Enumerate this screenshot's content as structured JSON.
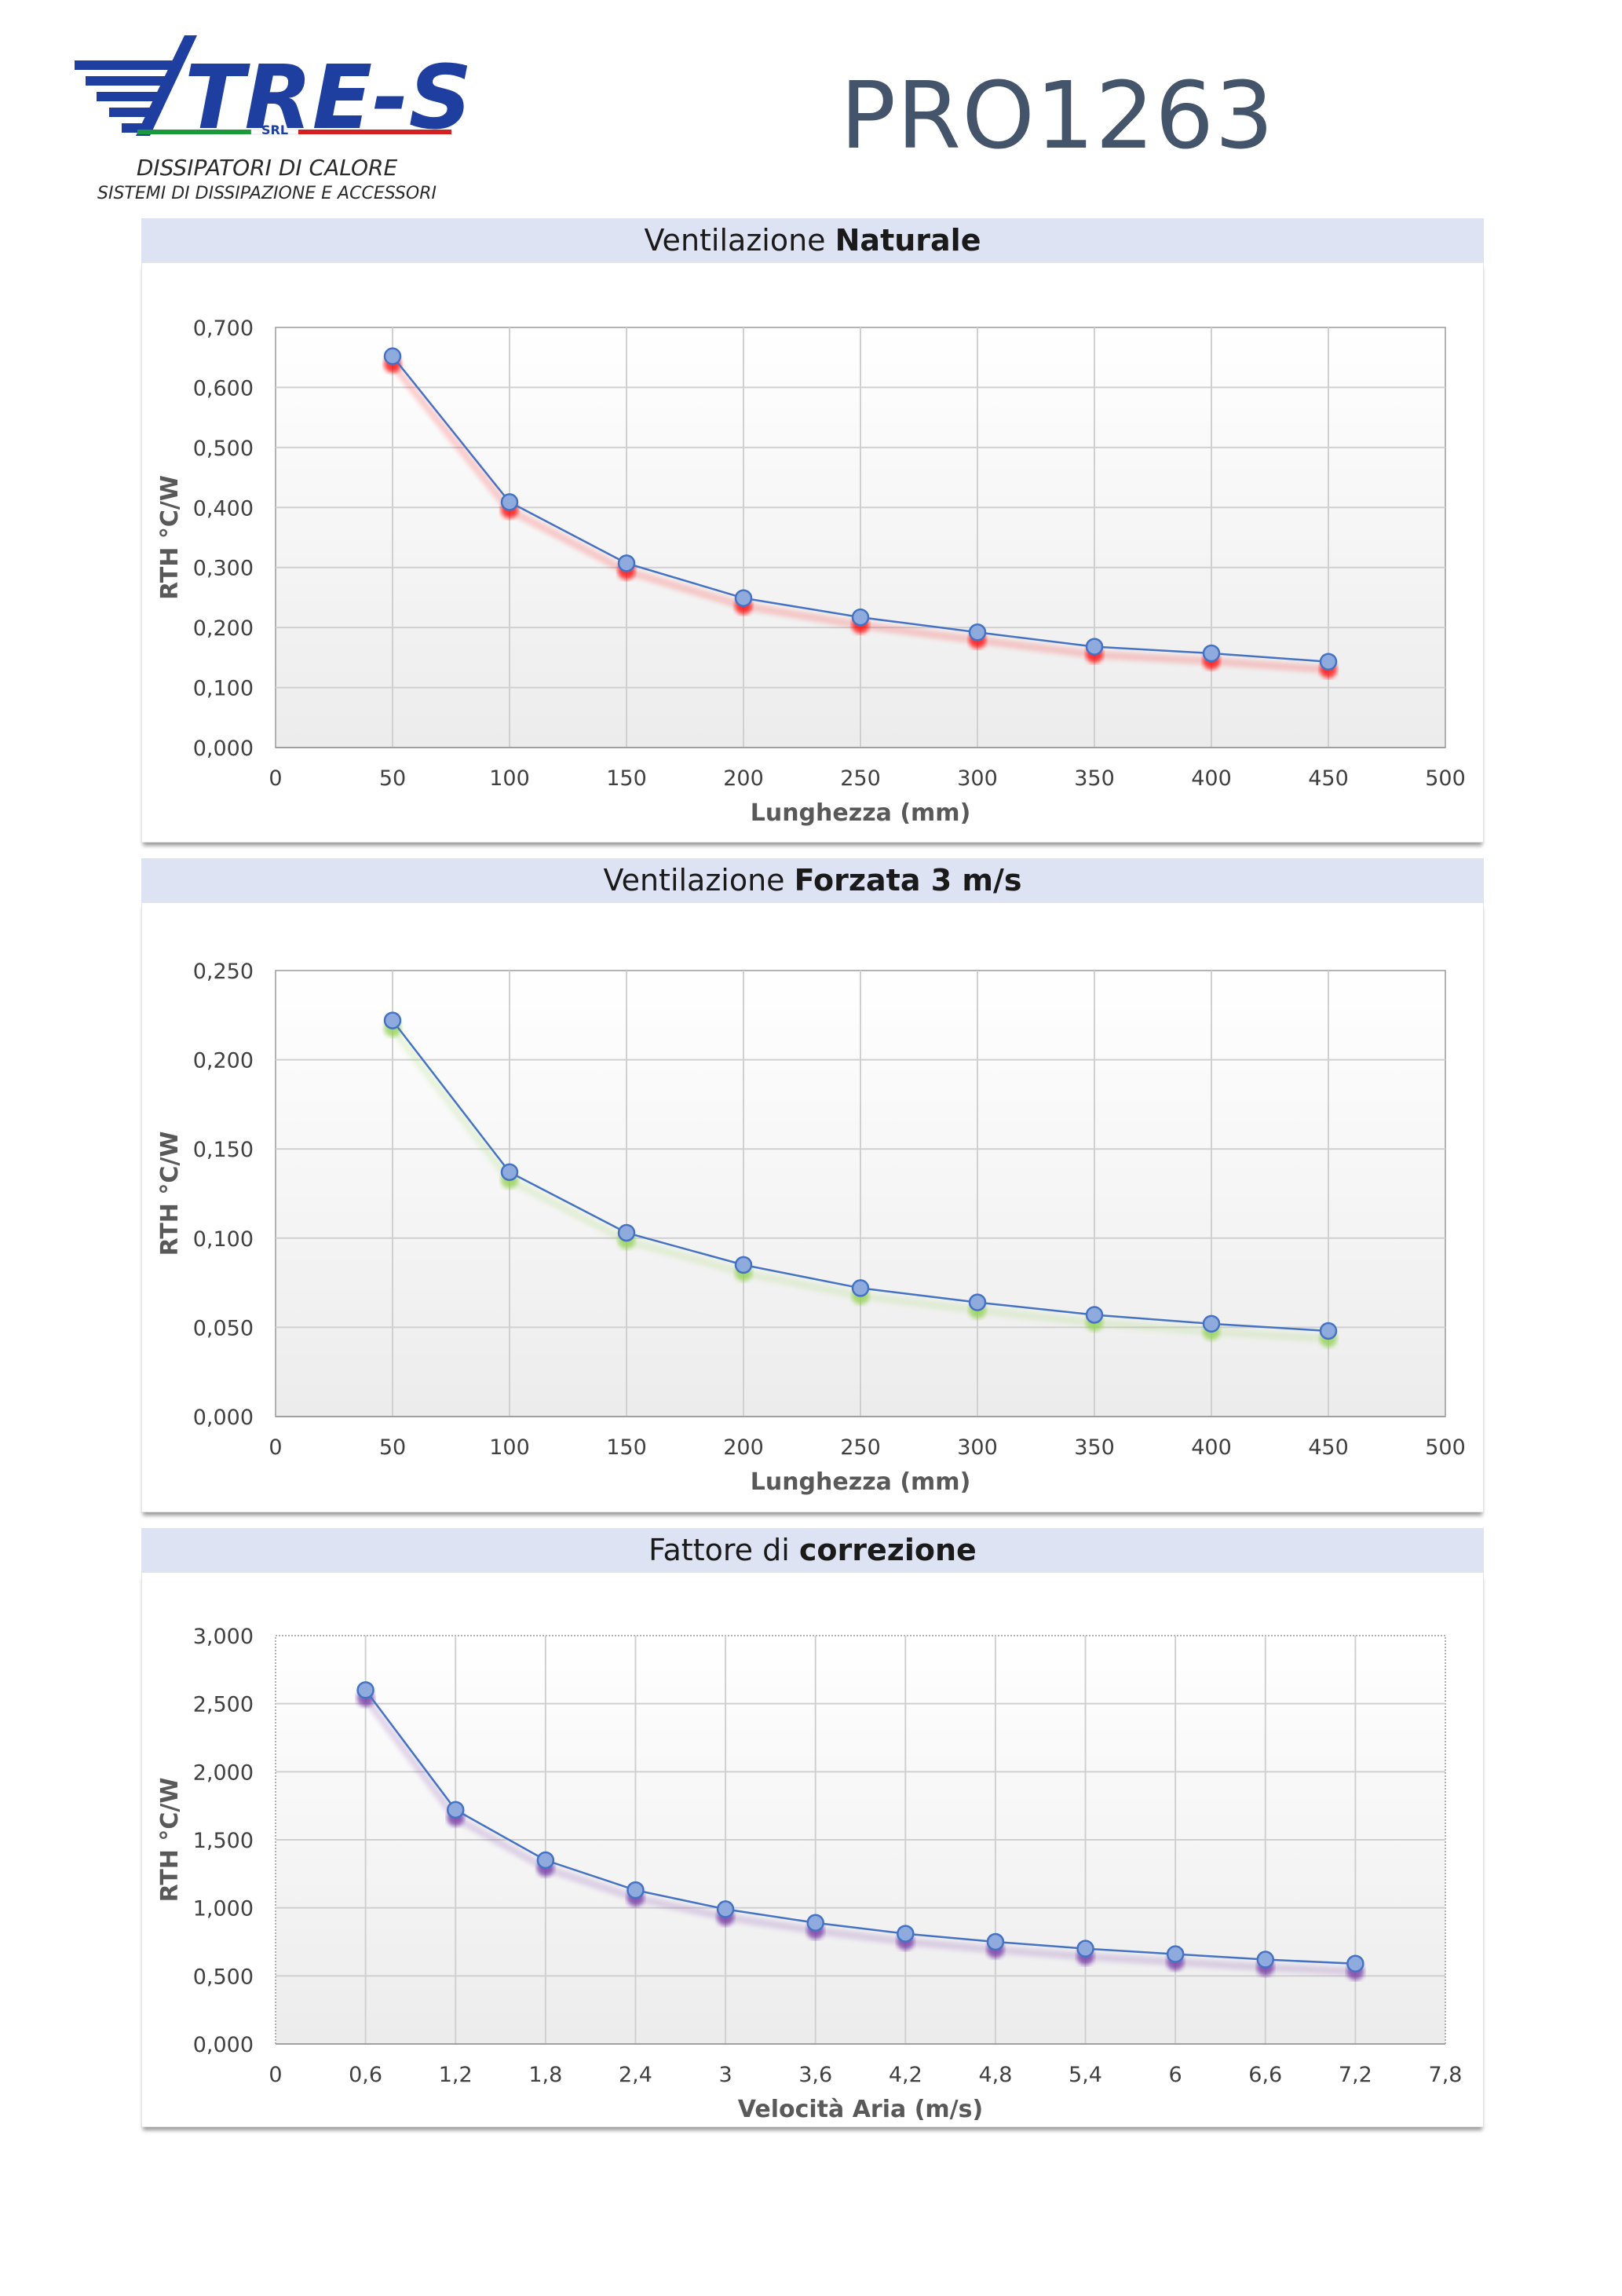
{
  "logo": {
    "brand": "TRE-S",
    "suffix": "SRL",
    "line1": "DISSIPATORI DI CALORE",
    "line2": "SISTEMI DI DISSIPAZIONE E ACCESSORI"
  },
  "doc_code": "PRO1263",
  "colors": {
    "header_bg": "#dde3f3",
    "line": "#4472c4",
    "marker_fill": "#8faadc",
    "shadow_natural": "#ff0000",
    "shadow_forced": "#92d050",
    "shadow_correction": "#7030a0"
  },
  "panels": [
    {
      "title_plain": "Ventilazione ",
      "title_bold": "Naturale"
    },
    {
      "title_plain": "Ventilazione ",
      "title_bold": "Forzata 3 m/s"
    },
    {
      "title_plain": "Fattore di ",
      "title_bold": "correzione"
    }
  ],
  "chart_data": [
    {
      "type": "scatter",
      "xlabel": "Lunghezza (mm)",
      "ylabel": "RTH °C/W",
      "xlim": [
        0,
        500
      ],
      "ylim": [
        0,
        0.7
      ],
      "xticks": [
        "0",
        "50",
        "100",
        "150",
        "200",
        "250",
        "300",
        "350",
        "400",
        "450",
        "500"
      ],
      "yticks": [
        "0,000",
        "0,100",
        "0,200",
        "0,300",
        "0,400",
        "0,500",
        "0,600",
        "0,700"
      ],
      "grid": true,
      "x": [
        50,
        100,
        150,
        200,
        250,
        300,
        350,
        400,
        450
      ],
      "y": [
        0.652,
        0.409,
        0.307,
        0.249,
        0.217,
        0.192,
        0.168,
        0.157,
        0.143
      ]
    },
    {
      "type": "scatter",
      "xlabel": "Lunghezza (mm)",
      "ylabel": "RTH °C/W",
      "xlim": [
        0,
        500
      ],
      "ylim": [
        0,
        0.25
      ],
      "xticks": [
        "0",
        "50",
        "100",
        "150",
        "200",
        "250",
        "300",
        "350",
        "400",
        "450",
        "500"
      ],
      "yticks": [
        "0,000",
        "0,050",
        "0,100",
        "0,150",
        "0,200",
        "0,250"
      ],
      "grid": true,
      "x": [
        50,
        100,
        150,
        200,
        250,
        300,
        350,
        400,
        450
      ],
      "y": [
        0.222,
        0.137,
        0.103,
        0.085,
        0.072,
        0.064,
        0.057,
        0.052,
        0.048
      ]
    },
    {
      "type": "scatter",
      "xlabel": "Velocità Aria (m/s)",
      "ylabel": "RTH °C/W",
      "xlim": [
        0,
        7.8
      ],
      "ylim": [
        0,
        3.0
      ],
      "xticks": [
        "0",
        "0,6",
        "1,2",
        "1,8",
        "2,4",
        "3",
        "3,6",
        "4,2",
        "4,8",
        "5,4",
        "6",
        "6,6",
        "7,2",
        "7,8"
      ],
      "yticks": [
        "0,000",
        "0,500",
        "1,000",
        "1,500",
        "2,000",
        "2,500",
        "3,000"
      ],
      "grid": true,
      "x": [
        0.6,
        1.2,
        1.8,
        2.4,
        3.0,
        3.6,
        4.2,
        4.8,
        5.4,
        6.0,
        6.6,
        7.2
      ],
      "y": [
        2.6,
        1.72,
        1.35,
        1.13,
        0.99,
        0.89,
        0.81,
        0.75,
        0.7,
        0.66,
        0.62,
        0.59
      ]
    }
  ]
}
